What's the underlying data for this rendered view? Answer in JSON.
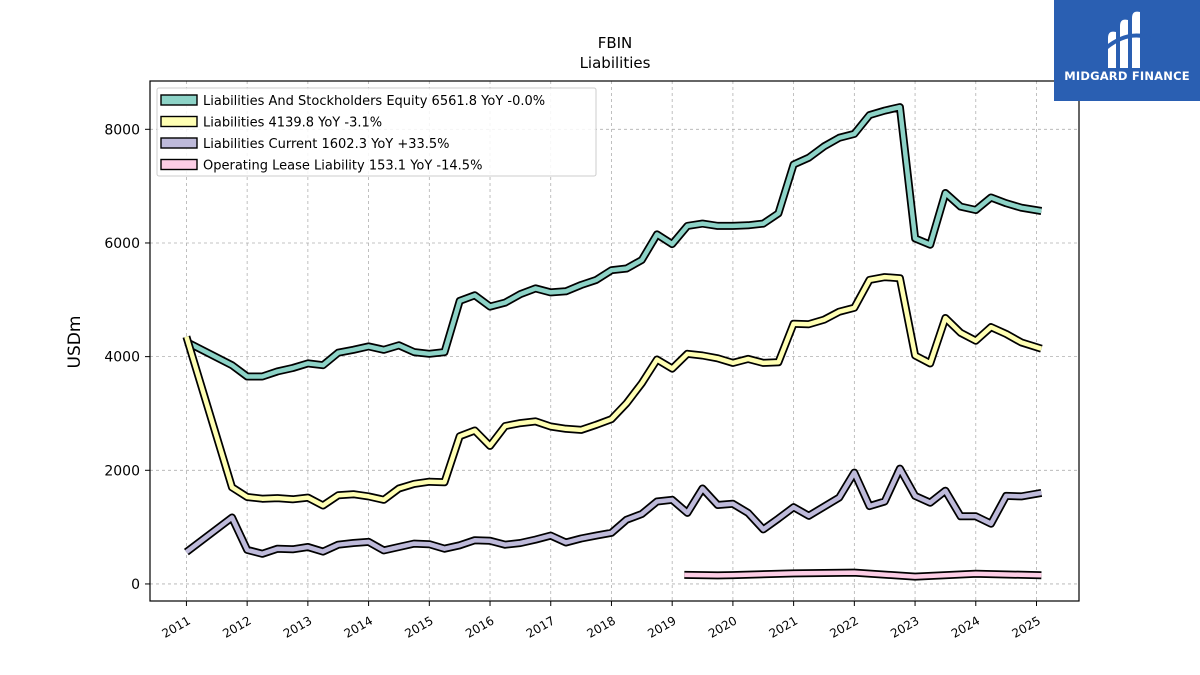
{
  "chart_data": {
    "type": "line",
    "title": "FBIN",
    "subtitle": "Liabilities",
    "xlabel": "",
    "ylabel": "USDm",
    "xlim": [
      2010.4,
      2025.7
    ],
    "ylim": [
      -300,
      8850
    ],
    "x_ticks": [
      2011,
      2012,
      2013,
      2014,
      2015,
      2016,
      2017,
      2018,
      2019,
      2020,
      2021,
      2022,
      2023,
      2024,
      2025
    ],
    "y_ticks": [
      0,
      2000,
      4000,
      6000,
      8000
    ],
    "grid": true,
    "legend_position": "top-left",
    "series": [
      {
        "name": "Liabilities And Stockholders Equity  6561.8 YoY -0.0%",
        "color": "#8dd3c7",
        "points": [
          [
            2011.0,
            4260
          ],
          [
            2011.75,
            3850
          ],
          [
            2012.0,
            3650
          ],
          [
            2012.25,
            3650
          ],
          [
            2012.5,
            3740
          ],
          [
            2012.75,
            3800
          ],
          [
            2013.0,
            3880
          ],
          [
            2013.25,
            3850
          ],
          [
            2013.5,
            4070
          ],
          [
            2013.75,
            4120
          ],
          [
            2014.0,
            4180
          ],
          [
            2014.25,
            4120
          ],
          [
            2014.5,
            4200
          ],
          [
            2014.75,
            4080
          ],
          [
            2015.0,
            4050
          ],
          [
            2015.25,
            4080
          ],
          [
            2015.5,
            4980
          ],
          [
            2015.75,
            5080
          ],
          [
            2016.0,
            4880
          ],
          [
            2016.25,
            4950
          ],
          [
            2016.5,
            5100
          ],
          [
            2016.75,
            5200
          ],
          [
            2017.0,
            5130
          ],
          [
            2017.25,
            5150
          ],
          [
            2017.5,
            5260
          ],
          [
            2017.75,
            5350
          ],
          [
            2018.0,
            5520
          ],
          [
            2018.25,
            5550
          ],
          [
            2018.5,
            5700
          ],
          [
            2018.75,
            6150
          ],
          [
            2019.0,
            5980
          ],
          [
            2019.25,
            6300
          ],
          [
            2019.5,
            6340
          ],
          [
            2019.75,
            6300
          ],
          [
            2020.0,
            6300
          ],
          [
            2020.25,
            6310
          ],
          [
            2020.5,
            6340
          ],
          [
            2020.75,
            6520
          ],
          [
            2021.0,
            7380
          ],
          [
            2021.25,
            7500
          ],
          [
            2021.5,
            7700
          ],
          [
            2021.75,
            7850
          ],
          [
            2022.0,
            7920
          ],
          [
            2022.25,
            8250
          ],
          [
            2022.5,
            8330
          ],
          [
            2022.75,
            8390
          ],
          [
            2023.0,
            6080
          ],
          [
            2023.25,
            5970
          ],
          [
            2023.5,
            6880
          ],
          [
            2023.75,
            6640
          ],
          [
            2024.0,
            6580
          ],
          [
            2024.25,
            6800
          ],
          [
            2024.5,
            6700
          ],
          [
            2024.75,
            6620
          ],
          [
            2025.08,
            6562
          ]
        ]
      },
      {
        "name": "Liabilities  4139.8 YoY -3.1%",
        "color": "#ffffb3",
        "points": [
          [
            2011.0,
            4350
          ],
          [
            2011.75,
            1700
          ],
          [
            2012.0,
            1530
          ],
          [
            2012.25,
            1500
          ],
          [
            2012.5,
            1510
          ],
          [
            2012.75,
            1490
          ],
          [
            2013.0,
            1520
          ],
          [
            2013.25,
            1380
          ],
          [
            2013.5,
            1560
          ],
          [
            2013.75,
            1580
          ],
          [
            2014.0,
            1540
          ],
          [
            2014.25,
            1480
          ],
          [
            2014.5,
            1680
          ],
          [
            2014.75,
            1760
          ],
          [
            2015.0,
            1800
          ],
          [
            2015.25,
            1790
          ],
          [
            2015.5,
            2600
          ],
          [
            2015.75,
            2700
          ],
          [
            2016.0,
            2430
          ],
          [
            2016.25,
            2780
          ],
          [
            2016.5,
            2830
          ],
          [
            2016.75,
            2860
          ],
          [
            2017.0,
            2770
          ],
          [
            2017.25,
            2730
          ],
          [
            2017.5,
            2710
          ],
          [
            2017.75,
            2800
          ],
          [
            2018.0,
            2900
          ],
          [
            2018.25,
            3180
          ],
          [
            2018.5,
            3530
          ],
          [
            2018.75,
            3950
          ],
          [
            2019.0,
            3790
          ],
          [
            2019.25,
            4050
          ],
          [
            2019.5,
            4020
          ],
          [
            2019.75,
            3970
          ],
          [
            2020.0,
            3890
          ],
          [
            2020.25,
            3960
          ],
          [
            2020.5,
            3890
          ],
          [
            2020.75,
            3900
          ],
          [
            2021.0,
            4580
          ],
          [
            2021.25,
            4570
          ],
          [
            2021.5,
            4650
          ],
          [
            2021.75,
            4790
          ],
          [
            2022.0,
            4860
          ],
          [
            2022.25,
            5350
          ],
          [
            2022.5,
            5400
          ],
          [
            2022.75,
            5380
          ],
          [
            2023.0,
            4020
          ],
          [
            2023.25,
            3880
          ],
          [
            2023.5,
            4680
          ],
          [
            2023.75,
            4420
          ],
          [
            2024.0,
            4280
          ],
          [
            2024.25,
            4520
          ],
          [
            2024.5,
            4400
          ],
          [
            2024.75,
            4250
          ],
          [
            2025.08,
            4140
          ]
        ]
      },
      {
        "name": "Liabilities Current  1602.3 YoY +33.5%",
        "color": "#bebada",
        "points": [
          [
            2011.0,
            560
          ],
          [
            2011.75,
            1170
          ],
          [
            2012.0,
            600
          ],
          [
            2012.25,
            530
          ],
          [
            2012.5,
            620
          ],
          [
            2012.75,
            610
          ],
          [
            2013.0,
            650
          ],
          [
            2013.25,
            570
          ],
          [
            2013.5,
            690
          ],
          [
            2013.75,
            720
          ],
          [
            2014.0,
            740
          ],
          [
            2014.25,
            590
          ],
          [
            2014.5,
            650
          ],
          [
            2014.75,
            710
          ],
          [
            2015.0,
            700
          ],
          [
            2015.25,
            620
          ],
          [
            2015.5,
            680
          ],
          [
            2015.75,
            770
          ],
          [
            2016.0,
            760
          ],
          [
            2016.25,
            690
          ],
          [
            2016.5,
            720
          ],
          [
            2016.75,
            780
          ],
          [
            2017.0,
            850
          ],
          [
            2017.25,
            730
          ],
          [
            2017.5,
            800
          ],
          [
            2017.75,
            850
          ],
          [
            2018.0,
            900
          ],
          [
            2018.25,
            1130
          ],
          [
            2018.5,
            1230
          ],
          [
            2018.75,
            1450
          ],
          [
            2019.0,
            1480
          ],
          [
            2019.25,
            1250
          ],
          [
            2019.5,
            1680
          ],
          [
            2019.75,
            1390
          ],
          [
            2020.0,
            1410
          ],
          [
            2020.25,
            1250
          ],
          [
            2020.5,
            960
          ],
          [
            2020.75,
            1150
          ],
          [
            2021.0,
            1350
          ],
          [
            2021.25,
            1200
          ],
          [
            2021.5,
            1360
          ],
          [
            2021.75,
            1520
          ],
          [
            2022.0,
            1960
          ],
          [
            2022.25,
            1370
          ],
          [
            2022.5,
            1450
          ],
          [
            2022.75,
            2030
          ],
          [
            2023.0,
            1550
          ],
          [
            2023.25,
            1430
          ],
          [
            2023.5,
            1640
          ],
          [
            2023.75,
            1190
          ],
          [
            2024.0,
            1190
          ],
          [
            2024.25,
            1060
          ],
          [
            2024.5,
            1550
          ],
          [
            2024.75,
            1540
          ],
          [
            2025.08,
            1602
          ]
        ]
      },
      {
        "name": "Operating Lease Liability  153.1 YoY -14.5%",
        "color": "#fccde5",
        "points": [
          [
            2019.2,
            160
          ],
          [
            2019.75,
            150
          ],
          [
            2020.0,
            155
          ],
          [
            2021.0,
            185
          ],
          [
            2022.0,
            200
          ],
          [
            2023.0,
            130
          ],
          [
            2024.0,
            180
          ],
          [
            2025.08,
            153
          ]
        ]
      }
    ]
  },
  "logo": {
    "text": "MIDGARD FINANCE",
    "background": "#2a5fb2"
  }
}
